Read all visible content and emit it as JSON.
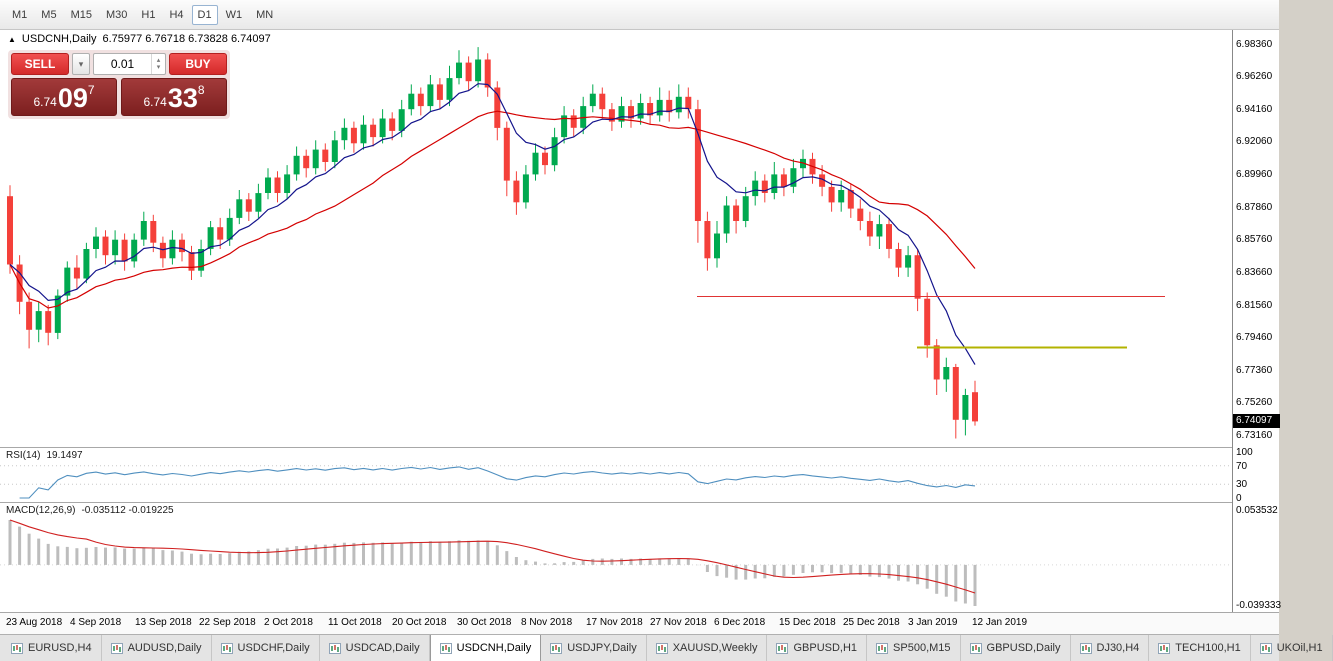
{
  "toolbar": {
    "timeframes": [
      "M1",
      "M5",
      "M15",
      "M30",
      "H1",
      "H4",
      "D1",
      "W1",
      "MN"
    ],
    "active": "D1"
  },
  "chart": {
    "header_marker": "▲",
    "header_symbol": "USDCNH,Daily",
    "header_ohlc": "6.75977 6.76718 6.73828 6.74097",
    "price_badge": "6.74097"
  },
  "trade_panel": {
    "sell_label": "SELL",
    "buy_label": "BUY",
    "volume_value": "0.01",
    "sell_price": {
      "prefix": "6.74",
      "big": "09",
      "sup": "7"
    },
    "buy_price": {
      "prefix": "6.74",
      "big": "33",
      "sup": "8"
    }
  },
  "rsi": {
    "label": "RSI(14)",
    "value": "19.1497"
  },
  "macd": {
    "label": "MACD(12,26,9)",
    "values": "-0.035112 -0.019225"
  },
  "tabs": {
    "items": [
      "EURUSD,H4",
      "AUDUSD,Daily",
      "USDCHF,Daily",
      "USDCAD,Daily",
      "USDCNH,Daily",
      "USDJPY,Daily",
      "XAUUSD,Weekly",
      "GBPUSD,H1",
      "SP500,M15",
      "GBPUSD,Daily",
      "DJ30,H4",
      "TECH100,H1",
      "UKOil,H1"
    ],
    "active": "USDCNH,Daily"
  },
  "chart_data": {
    "type": "candlestick",
    "title": "USDCNH,Daily",
    "last_ohlc": {
      "open": 6.75977,
      "high": 6.76718,
      "low": 6.73828,
      "close": 6.74097
    },
    "y_axis": {
      "min": 6.7245,
      "max": 6.993,
      "ticks": [
        "6.98360",
        "6.96260",
        "6.94160",
        "6.92060",
        "6.89960",
        "6.87860",
        "6.85760",
        "6.83660",
        "6.81560",
        "6.79460",
        "6.77360",
        "6.75260",
        "6.73160"
      ]
    },
    "x_ticks": [
      "23 Aug 2018",
      "4 Sep 2018",
      "13 Sep 2018",
      "22 Sep 2018",
      "2 Oct 2018",
      "11 Oct 2018",
      "20 Oct 2018",
      "30 Oct 2018",
      "8 Nov 2018",
      "17 Nov 2018",
      "27 Nov 2018",
      "6 Dec 2018",
      "15 Dec 2018",
      "25 Dec 2018",
      "3 Jan 2019",
      "12 Jan 2019"
    ],
    "ohlc": [
      [
        6.886,
        6.893,
        6.836,
        6.842
      ],
      [
        6.842,
        6.848,
        6.81,
        6.818
      ],
      [
        6.818,
        6.824,
        6.788,
        6.8
      ],
      [
        6.8,
        6.818,
        6.792,
        6.812
      ],
      [
        6.812,
        6.816,
        6.79,
        6.798
      ],
      [
        6.798,
        6.826,
        6.794,
        6.822
      ],
      [
        6.822,
        6.844,
        6.818,
        6.84
      ],
      [
        6.84,
        6.848,
        6.826,
        6.833
      ],
      [
        6.833,
        6.856,
        6.83,
        6.852
      ],
      [
        6.852,
        6.866,
        6.846,
        6.86
      ],
      [
        6.86,
        6.864,
        6.842,
        6.848
      ],
      [
        6.848,
        6.864,
        6.842,
        6.858
      ],
      [
        6.858,
        6.862,
        6.838,
        6.844
      ],
      [
        6.844,
        6.862,
        6.84,
        6.858
      ],
      [
        6.858,
        6.876,
        6.854,
        6.87
      ],
      [
        6.87,
        6.874,
        6.85,
        6.856
      ],
      [
        6.856,
        6.86,
        6.84,
        6.846
      ],
      [
        6.846,
        6.864,
        6.842,
        6.858
      ],
      [
        6.858,
        6.862,
        6.844,
        6.85
      ],
      [
        6.85,
        6.854,
        6.832,
        6.838
      ],
      [
        6.838,
        6.858,
        6.834,
        6.852
      ],
      [
        6.852,
        6.87,
        6.848,
        6.866
      ],
      [
        6.866,
        6.872,
        6.852,
        6.858
      ],
      [
        6.858,
        6.878,
        6.854,
        6.872
      ],
      [
        6.872,
        6.89,
        6.868,
        6.884
      ],
      [
        6.884,
        6.888,
        6.87,
        6.876
      ],
      [
        6.876,
        6.894,
        6.872,
        6.888
      ],
      [
        6.888,
        6.904,
        6.884,
        6.898
      ],
      [
        6.898,
        6.902,
        6.882,
        6.888
      ],
      [
        6.888,
        6.906,
        6.884,
        6.9
      ],
      [
        6.9,
        6.918,
        6.896,
        6.912
      ],
      [
        6.912,
        6.916,
        6.898,
        6.904
      ],
      [
        6.904,
        6.922,
        6.9,
        6.916
      ],
      [
        6.916,
        6.92,
        6.902,
        6.908
      ],
      [
        6.908,
        6.928,
        6.904,
        6.922
      ],
      [
        6.922,
        6.936,
        6.916,
        6.93
      ],
      [
        6.93,
        6.934,
        6.914,
        6.92
      ],
      [
        6.92,
        6.938,
        6.916,
        6.932
      ],
      [
        6.932,
        6.936,
        6.918,
        6.924
      ],
      [
        6.924,
        6.942,
        6.92,
        6.936
      ],
      [
        6.936,
        6.94,
        6.922,
        6.928
      ],
      [
        6.928,
        6.948,
        6.924,
        6.942
      ],
      [
        6.942,
        6.958,
        6.938,
        6.952
      ],
      [
        6.952,
        6.956,
        6.938,
        6.944
      ],
      [
        6.944,
        6.964,
        6.94,
        6.958
      ],
      [
        6.958,
        6.962,
        6.942,
        6.948
      ],
      [
        6.948,
        6.97,
        6.944,
        6.962
      ],
      [
        6.962,
        6.98,
        6.958,
        6.972
      ],
      [
        6.972,
        6.976,
        6.954,
        6.96
      ],
      [
        6.96,
        6.982,
        6.956,
        6.974
      ],
      [
        6.974,
        6.978,
        6.95,
        6.956
      ],
      [
        6.956,
        6.96,
        6.922,
        6.93
      ],
      [
        6.93,
        6.934,
        6.886,
        6.896
      ],
      [
        6.896,
        6.902,
        6.874,
        6.882
      ],
      [
        6.882,
        6.906,
        6.878,
        6.9
      ],
      [
        6.9,
        6.92,
        6.896,
        6.914
      ],
      [
        6.914,
        6.918,
        6.9,
        6.906
      ],
      [
        6.906,
        6.93,
        6.902,
        6.924
      ],
      [
        6.924,
        6.944,
        6.92,
        6.938
      ],
      [
        6.938,
        6.942,
        6.924,
        6.93
      ],
      [
        6.93,
        6.95,
        6.926,
        6.944
      ],
      [
        6.944,
        6.958,
        6.94,
        6.952
      ],
      [
        6.952,
        6.956,
        6.936,
        6.942
      ],
      [
        6.942,
        6.946,
        6.928,
        6.934
      ],
      [
        6.934,
        6.95,
        6.93,
        6.944
      ],
      [
        6.944,
        6.948,
        6.93,
        6.936
      ],
      [
        6.936,
        6.952,
        6.932,
        6.946
      ],
      [
        6.946,
        6.95,
        6.932,
        6.938
      ],
      [
        6.938,
        6.956,
        6.934,
        6.948
      ],
      [
        6.948,
        6.954,
        6.934,
        6.94
      ],
      [
        6.94,
        6.958,
        6.936,
        6.95
      ],
      [
        6.95,
        6.956,
        6.936,
        6.942
      ],
      [
        6.942,
        6.948,
        6.856,
        6.87
      ],
      [
        6.87,
        6.876,
        6.838,
        6.846
      ],
      [
        6.846,
        6.87,
        6.84,
        6.862
      ],
      [
        6.862,
        6.886,
        6.856,
        6.88
      ],
      [
        6.88,
        6.884,
        6.862,
        6.87
      ],
      [
        6.87,
        6.892,
        6.866,
        6.886
      ],
      [
        6.886,
        6.902,
        6.88,
        6.896
      ],
      [
        6.896,
        6.9,
        6.882,
        6.888
      ],
      [
        6.888,
        6.908,
        6.884,
        6.9
      ],
      [
        6.9,
        6.904,
        6.886,
        6.892
      ],
      [
        6.892,
        6.91,
        6.888,
        6.904
      ],
      [
        6.904,
        6.916,
        6.898,
        6.91
      ],
      [
        6.91,
        6.914,
        6.894,
        6.9
      ],
      [
        6.9,
        6.906,
        6.886,
        6.892
      ],
      [
        6.892,
        6.896,
        6.876,
        6.882
      ],
      [
        6.882,
        6.896,
        6.876,
        6.89
      ],
      [
        6.89,
        6.894,
        6.872,
        6.878
      ],
      [
        6.878,
        6.884,
        6.864,
        6.87
      ],
      [
        6.87,
        6.876,
        6.854,
        6.86
      ],
      [
        6.86,
        6.874,
        6.852,
        6.868
      ],
      [
        6.868,
        6.872,
        6.846,
        6.852
      ],
      [
        6.852,
        6.856,
        6.834,
        6.84
      ],
      [
        6.84,
        6.854,
        6.834,
        6.848
      ],
      [
        6.848,
        6.852,
        6.812,
        6.82
      ],
      [
        6.82,
        6.824,
        6.782,
        6.79
      ],
      [
        6.79,
        6.794,
        6.758,
        6.768
      ],
      [
        6.768,
        6.782,
        6.76,
        6.776
      ],
      [
        6.776,
        6.778,
        6.73,
        6.742
      ],
      [
        6.742,
        6.762,
        6.732,
        6.758
      ],
      [
        6.75977,
        6.76718,
        6.73828,
        6.74097
      ]
    ],
    "colors": {
      "up": "#00a94f",
      "down": "#f4403a",
      "ma_fast": "#14148c",
      "ma_slow": "#d40000",
      "rsi": "#4f8fbf",
      "macd_bars": "#bdbdbd",
      "macd_signal": "#d02020"
    },
    "overlays": [
      {
        "type": "ema",
        "period": 8,
        "color_key": "ma_fast"
      },
      {
        "type": "sma",
        "period": 20,
        "color_key": "ma_slow"
      }
    ],
    "hlines": [
      {
        "price": 6.8215,
        "x1": 697,
        "x2": 1165,
        "color": "#e03434",
        "width": 1
      },
      {
        "price": 6.7885,
        "x1": 917,
        "x2": 1127,
        "color": "#b3b300",
        "width": 2
      }
    ],
    "rsi": {
      "period": 14,
      "last": 19.1497,
      "axis": [
        "100",
        "70",
        "30",
        "0"
      ],
      "levels": [
        70,
        30
      ]
    },
    "macd": {
      "fast": 12,
      "slow": 26,
      "signal": 9,
      "axis_max": 0.053532,
      "axis_min": -0.039333,
      "axis_labels": [
        "0.053532",
        "-0.039333"
      ]
    }
  }
}
